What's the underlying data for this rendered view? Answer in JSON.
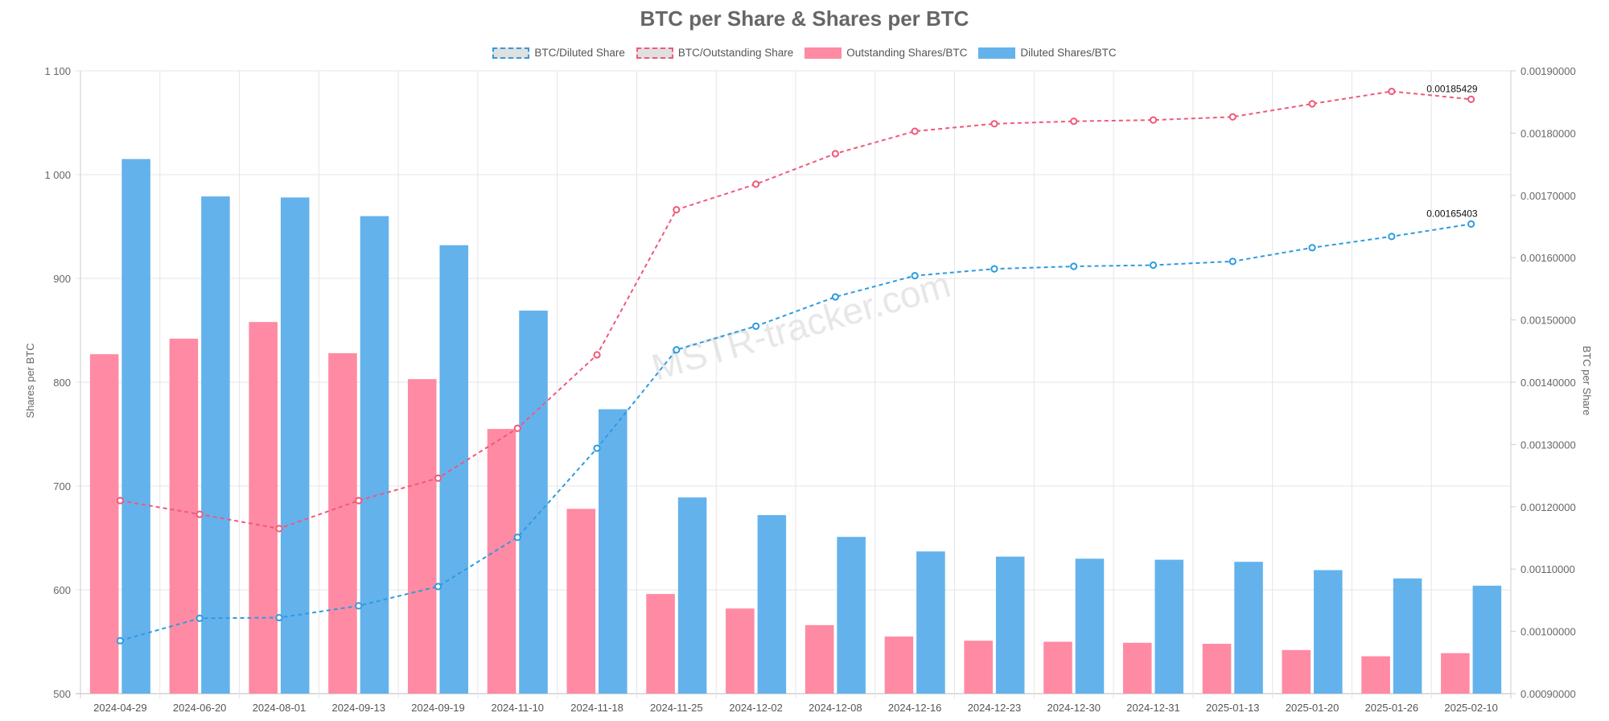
{
  "chart_data": {
    "type": "bar",
    "title": "BTC per Share & Shares per BTC",
    "ylabel_left": "Shares per BTC",
    "ylabel_right": "BTC per Share",
    "watermark": "MSTR-tracker.com",
    "ylim_left": [
      500,
      1100
    ],
    "ylim_right": [
      0.0009,
      0.0019
    ],
    "yticks_left": [
      "500",
      "600",
      "700",
      "800",
      "900",
      "1 000",
      "1 100"
    ],
    "yticks_right": [
      "0.00090000",
      "0.00100000",
      "0.00110000",
      "0.00120000",
      "0.00130000",
      "0.00140000",
      "0.00150000",
      "0.00160000",
      "0.00170000",
      "0.00180000",
      "0.00190000"
    ],
    "grid": true,
    "legend_position": "top-center",
    "categories": [
      "2024-04-29",
      "2024-06-20",
      "2024-08-01",
      "2024-09-13",
      "2024-09-19",
      "2024-11-10",
      "2024-11-18",
      "2024-11-25",
      "2024-12-02",
      "2024-12-08",
      "2024-12-16",
      "2024-12-23",
      "2024-12-30",
      "2024-12-31",
      "2025-01-13",
      "2025-01-20",
      "2025-01-26",
      "2025-02-10"
    ],
    "series": [
      {
        "name": "BTC/Diluted Share",
        "kind": "line",
        "axis": "right",
        "color": "#2d9be0",
        "values": [
          0.000985,
          0.001021,
          0.001022,
          0.001041,
          0.001072,
          0.001151,
          0.001294,
          0.001452,
          0.00149,
          0.001537,
          0.001571,
          0.001582,
          0.001586,
          0.001588,
          0.001594,
          0.001616,
          0.001634,
          0.00165403
        ]
      },
      {
        "name": "BTC/Outstanding Share",
        "kind": "line",
        "axis": "right",
        "color": "#f0597a",
        "values": [
          0.00121,
          0.001188,
          0.001165,
          0.00121,
          0.001246,
          0.001326,
          0.001444,
          0.001677,
          0.001718,
          0.001767,
          0.001803,
          0.001815,
          0.001819,
          0.001821,
          0.001826,
          0.001847,
          0.001867,
          0.00185429
        ]
      },
      {
        "name": "Outstanding Shares/BTC",
        "kind": "bar",
        "axis": "left",
        "color": "#ff8aa3",
        "values": [
          827,
          842,
          858,
          828,
          803,
          755,
          678,
          596,
          582,
          566,
          555,
          551,
          550,
          549,
          548,
          542,
          536,
          539
        ]
      },
      {
        "name": "Diluted Shares/BTC",
        "kind": "bar",
        "axis": "left",
        "color": "#64b2ec",
        "values": [
          1015,
          979,
          978,
          960,
          932,
          869,
          774,
          689,
          672,
          651,
          637,
          632,
          630,
          629,
          627,
          619,
          611,
          604
        ]
      }
    ],
    "annotations": [
      {
        "series": "BTC/Outstanding Share",
        "index": 17,
        "text": "0.00185429"
      },
      {
        "series": "BTC/Diluted Share",
        "index": 17,
        "text": "0.00165403"
      }
    ]
  }
}
